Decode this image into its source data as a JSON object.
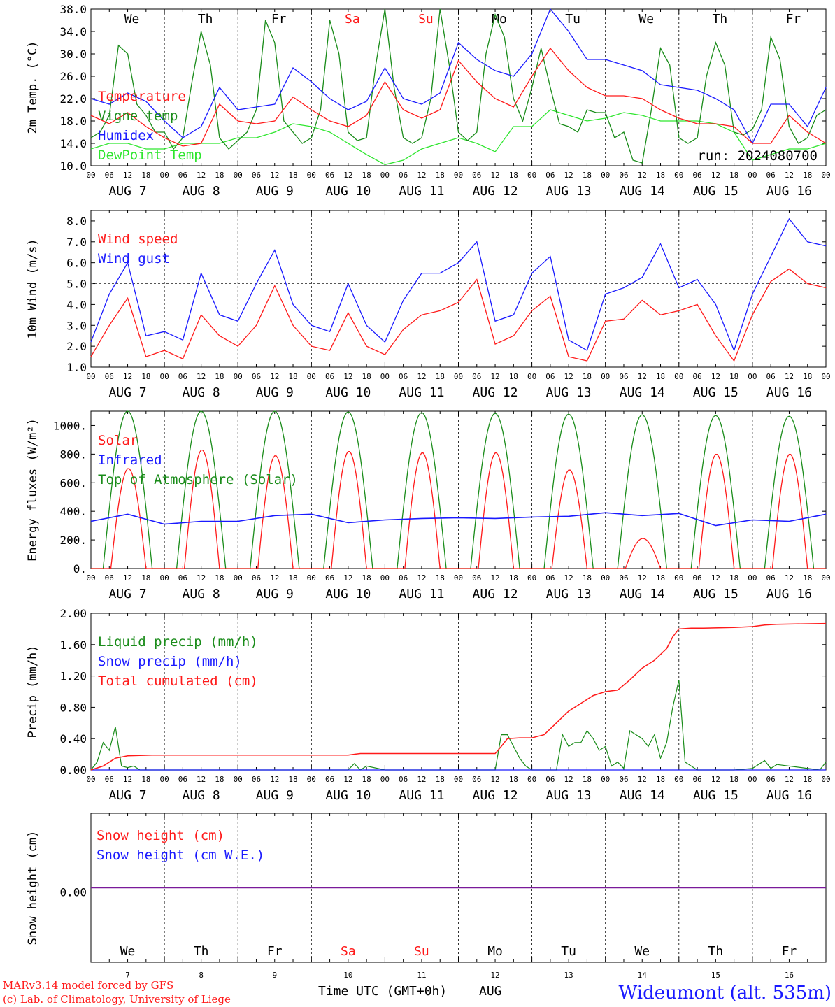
{
  "colors": {
    "red": "#ff1a1a",
    "green": "#1a8c1a",
    "lightgreen": "#2ee62e",
    "blue": "#1a1aff",
    "purple": "#7a1a9a",
    "weekend": "#ff1a1a"
  },
  "x_axis": {
    "hour_ticks": [
      "00",
      "06",
      "12",
      "18"
    ],
    "final_tick": "00",
    "day_labels": [
      "AUG  7",
      "AUG  8",
      "AUG  9",
      "AUG 10",
      "AUG 11",
      "AUG 12",
      "AUG 13",
      "AUG 14",
      "AUG 15",
      "AUG 16"
    ],
    "weekdays": [
      "We",
      "Th",
      "Fr",
      "Sa",
      "Su",
      "Mo",
      "Tu",
      "We",
      "Th",
      "Fr"
    ],
    "weekend_flags": [
      false,
      false,
      false,
      true,
      true,
      false,
      false,
      false,
      false,
      false
    ],
    "bottom_day_numbers": [
      "7",
      "8",
      "9",
      "10",
      "11",
      "12",
      "13",
      "14",
      "15",
      "16"
    ],
    "bottom_label": "Time UTC (GMT+0h)",
    "month_label": "AUG"
  },
  "run_label": "run: 2024080700",
  "footer": {
    "line1": "MARv3.14 model forced by GFS",
    "line2": "(c) Lab. of Climatology, University of Liege",
    "station": "Wideumont (alt. 535m)"
  },
  "chart_data": [
    {
      "type": "line",
      "ylabel": "2m Temp. (°C)",
      "ylim": [
        10,
        38
      ],
      "yticks": [
        "10.0",
        "14.0",
        "18.0",
        "22.0",
        "26.0",
        "30.0",
        "34.0",
        "38.0"
      ],
      "x_hours_range": [
        0,
        240
      ],
      "series": [
        {
          "name": "Temperature",
          "color": "red",
          "x": [
            0,
            6,
            12,
            18,
            24,
            30,
            36,
            42,
            48,
            54,
            60,
            66,
            72,
            78,
            84,
            90,
            96,
            102,
            108,
            114,
            120,
            126,
            132,
            138,
            144,
            150,
            156,
            162,
            168,
            174,
            180,
            186,
            192,
            198,
            204,
            210,
            216,
            222,
            228,
            234,
            240
          ],
          "y": [
            19,
            17.5,
            19.5,
            17,
            15,
            13.5,
            14,
            21,
            18,
            17.5,
            18,
            22.3,
            20,
            18,
            17,
            19,
            25,
            20,
            18.5,
            20,
            28.8,
            25,
            22,
            20.5,
            26,
            31,
            27,
            24,
            22.5,
            22.5,
            22,
            20,
            18.5,
            17.5,
            17.5,
            17,
            14,
            14,
            19,
            16,
            14
          ]
        },
        {
          "name": "Vigne temp",
          "color": "green",
          "x": [
            0,
            3,
            6,
            9,
            12,
            15,
            18,
            21,
            24,
            27,
            30,
            33,
            36,
            39,
            42,
            45,
            48,
            51,
            54,
            57,
            60,
            63,
            66,
            69,
            72,
            75,
            78,
            81,
            84,
            87,
            90,
            93,
            96,
            99,
            102,
            105,
            108,
            111,
            114,
            117,
            120,
            123,
            126,
            129,
            132,
            135,
            138,
            141,
            144,
            147,
            150,
            153,
            156,
            159,
            162,
            165,
            168,
            171,
            174,
            177,
            180,
            183,
            186,
            189,
            192,
            195,
            198,
            201,
            204,
            207,
            210,
            213,
            216,
            219,
            222,
            225,
            228,
            231,
            234,
            237,
            240
          ],
          "y": [
            15,
            16,
            19,
            31.5,
            30,
            21,
            19,
            16,
            16,
            13,
            15,
            25,
            34,
            28,
            15,
            13,
            14.5,
            16,
            20,
            36,
            32,
            18,
            16,
            14,
            15,
            20,
            36,
            30,
            16,
            14.5,
            15,
            28,
            38,
            24,
            15,
            14,
            15,
            22,
            38,
            28,
            16,
            14.5,
            16,
            30,
            37,
            33,
            22,
            18,
            24,
            31,
            24,
            17.5,
            17,
            16,
            20,
            19.5,
            19.5,
            15,
            16,
            11,
            10.5,
            20,
            31,
            28,
            15,
            14,
            15,
            26,
            32,
            28,
            16,
            15.5,
            16.5,
            20,
            33,
            29,
            17,
            14,
            15,
            19,
            20
          ]
        },
        {
          "name": "Humidex",
          "color": "blue",
          "x": [
            0,
            6,
            12,
            18,
            24,
            30,
            36,
            42,
            48,
            54,
            60,
            66,
            72,
            78,
            84,
            90,
            96,
            102,
            108,
            114,
            120,
            126,
            132,
            138,
            144,
            150,
            156,
            162,
            168,
            174,
            180,
            186,
            192,
            198,
            204,
            210,
            216,
            222,
            228,
            234,
            240
          ],
          "y": [
            22,
            21,
            23,
            21.5,
            18,
            15,
            17,
            24,
            20,
            20.5,
            21,
            27.5,
            25,
            22,
            20,
            21.5,
            27.5,
            22,
            21,
            23,
            32,
            29,
            27,
            26,
            30,
            38,
            34,
            29,
            29,
            28,
            27,
            24.5,
            24,
            23.5,
            22,
            20,
            14,
            21,
            21,
            17,
            24
          ]
        },
        {
          "name": "DewPoint Temp",
          "color": "lightgreen",
          "x": [
            0,
            6,
            12,
            18,
            24,
            30,
            36,
            42,
            48,
            54,
            60,
            66,
            72,
            78,
            84,
            90,
            96,
            102,
            108,
            114,
            120,
            126,
            132,
            138,
            144,
            150,
            156,
            162,
            168,
            174,
            180,
            186,
            192,
            198,
            204,
            210,
            216,
            222,
            228,
            234,
            240
          ],
          "y": [
            13,
            14,
            14,
            13,
            13,
            14,
            14,
            14,
            15,
            15,
            16,
            17.5,
            17,
            16,
            14,
            12,
            10.2,
            11,
            13,
            14,
            15,
            14,
            12.5,
            17,
            17,
            20,
            19,
            18,
            18.5,
            19.5,
            19,
            18,
            18,
            18,
            17.5,
            16,
            11,
            12,
            13,
            13,
            14
          ]
        }
      ]
    },
    {
      "type": "line",
      "ylabel": "10m Wind (m/s)",
      "ylim": [
        1,
        8.5
      ],
      "yticks": [
        "1.0",
        "2.0",
        "3.0",
        "4.0",
        "5.0",
        "6.0",
        "7.0",
        "8.0"
      ],
      "reference_line": 5,
      "x_hours_range": [
        0,
        240
      ],
      "series": [
        {
          "name": "Wind speed",
          "color": "red",
          "x": [
            0,
            6,
            12,
            18,
            24,
            30,
            36,
            42,
            48,
            54,
            60,
            66,
            72,
            78,
            84,
            90,
            96,
            102,
            108,
            114,
            120,
            126,
            132,
            138,
            144,
            150,
            156,
            162,
            168,
            174,
            180,
            186,
            192,
            198,
            204,
            210,
            216,
            222,
            228,
            234,
            240
          ],
          "y": [
            1.5,
            3.0,
            4.3,
            1.5,
            1.8,
            1.4,
            3.5,
            2.5,
            2.0,
            3.0,
            4.9,
            3.0,
            2.0,
            1.8,
            3.6,
            2.0,
            1.6,
            2.8,
            3.5,
            3.7,
            4.1,
            5.2,
            2.1,
            2.5,
            3.7,
            4.4,
            1.5,
            1.3,
            3.2,
            3.3,
            4.2,
            3.5,
            3.7,
            4.0,
            2.5,
            1.3,
            3.5,
            5.1,
            5.7,
            5.0,
            4.8
          ]
        },
        {
          "name": "Wind gust",
          "color": "blue",
          "x": [
            0,
            6,
            12,
            18,
            24,
            30,
            36,
            42,
            48,
            54,
            60,
            66,
            72,
            78,
            84,
            90,
            96,
            102,
            108,
            114,
            120,
            126,
            132,
            138,
            144,
            150,
            156,
            162,
            168,
            174,
            180,
            186,
            192,
            198,
            204,
            210,
            216,
            222,
            228,
            234,
            240
          ],
          "y": [
            2.2,
            4.5,
            6.0,
            2.5,
            2.7,
            2.3,
            5.5,
            3.5,
            3.2,
            5.0,
            6.6,
            4.0,
            3.0,
            2.7,
            5.0,
            3.0,
            2.2,
            4.2,
            5.5,
            5.5,
            6.0,
            7.0,
            3.2,
            3.5,
            5.5,
            6.3,
            2.3,
            1.8,
            4.5,
            4.8,
            5.3,
            6.9,
            4.8,
            5.2,
            4.0,
            1.8,
            4.5,
            6.3,
            8.1,
            7.0,
            6.8
          ]
        }
      ]
    },
    {
      "type": "line",
      "ylabel": "Energy fluxes (W/m²)",
      "ylim": [
        0,
        1100
      ],
      "yticks": [
        "0.",
        "200.",
        "400.",
        "600.",
        "800.",
        "1000."
      ],
      "x_hours_range": [
        0,
        240
      ],
      "series": [
        {
          "name": "Solar",
          "color": "red",
          "peaks": [
            700,
            830,
            790,
            820,
            810,
            810,
            690,
            210,
            800,
            800
          ]
        },
        {
          "name": "Infrared",
          "color": "blue",
          "x": [
            0,
            12,
            24,
            36,
            48,
            60,
            72,
            84,
            96,
            108,
            120,
            132,
            144,
            156,
            168,
            180,
            192,
            204,
            216,
            228,
            240
          ],
          "y": [
            330,
            380,
            310,
            330,
            330,
            370,
            380,
            320,
            340,
            350,
            355,
            350,
            360,
            365,
            390,
            370,
            385,
            300,
            340,
            330,
            380
          ]
        },
        {
          "name": "Top of Atmosphere (Solar)",
          "color": "green",
          "peaks": [
            1100,
            1100,
            1100,
            1095,
            1090,
            1085,
            1080,
            1075,
            1070,
            1065
          ]
        }
      ]
    },
    {
      "type": "line",
      "ylabel": "Precip (mm/h)",
      "ylim": [
        0,
        2
      ],
      "yticks": [
        "0.00",
        "0.40",
        "0.80",
        "1.20",
        "1.60",
        "2.00"
      ],
      "x_hours_range": [
        0,
        240
      ],
      "series": [
        {
          "name": "Liquid precip (mm/h)",
          "color": "green",
          "x": [
            0,
            2,
            4,
            6,
            8,
            10,
            12,
            14,
            16,
            84,
            86,
            88,
            90,
            96,
            132,
            134,
            136,
            138,
            140,
            142,
            144,
            148,
            152,
            154,
            156,
            158,
            160,
            162,
            164,
            166,
            168,
            170,
            172,
            174,
            176,
            178,
            180,
            182,
            184,
            186,
            188,
            190,
            192,
            194,
            196,
            198,
            210,
            216,
            220,
            222,
            224,
            238,
            240
          ],
          "y": [
            0,
            0.1,
            0.35,
            0.25,
            0.55,
            0.05,
            0.03,
            0.05,
            0,
            0,
            0.08,
            0,
            0.05,
            0,
            0,
            0.45,
            0.45,
            0.3,
            0.15,
            0.05,
            0,
            0,
            0,
            0.45,
            0.3,
            0.35,
            0.35,
            0.5,
            0.4,
            0.25,
            0.3,
            0.05,
            0.1,
            0.02,
            0.5,
            0.45,
            0.4,
            0.3,
            0.45,
            0.15,
            0.35,
            0.8,
            1.15,
            0.1,
            0.05,
            0,
            0,
            0.02,
            0.12,
            0.02,
            0.07,
            0,
            0.1
          ]
        },
        {
          "name": "Snow precip (mm/h)",
          "color": "blue",
          "x": [
            0,
            240
          ],
          "y": [
            0,
            0
          ]
        },
        {
          "name": "Total cumulated (cm)",
          "color": "red",
          "x": [
            0,
            4,
            8,
            12,
            20,
            40,
            60,
            80,
            84,
            88,
            120,
            126,
            132,
            134,
            136,
            140,
            144,
            148,
            152,
            156,
            160,
            164,
            168,
            172,
            176,
            180,
            184,
            188,
            190,
            192,
            196,
            200,
            210,
            216,
            220,
            224,
            240
          ],
          "y": [
            0,
            0.05,
            0.15,
            0.18,
            0.19,
            0.19,
            0.19,
            0.19,
            0.19,
            0.21,
            0.21,
            0.21,
            0.21,
            0.3,
            0.4,
            0.41,
            0.41,
            0.45,
            0.6,
            0.75,
            0.85,
            0.95,
            1.0,
            1.02,
            1.15,
            1.3,
            1.4,
            1.55,
            1.7,
            1.8,
            1.81,
            1.81,
            1.82,
            1.83,
            1.85,
            1.86,
            1.87
          ]
        }
      ]
    },
    {
      "type": "line",
      "ylabel": "Snow height (cm)",
      "yticks": [
        "0.00"
      ],
      "x_hours_range": [
        0,
        240
      ],
      "series": [
        {
          "name": "Snow height (cm)",
          "color": "red",
          "x": [
            0,
            240
          ],
          "y": [
            0,
            0
          ]
        },
        {
          "name": "Snow height (cm W.E.)",
          "color": "blue",
          "x": [
            0,
            240
          ],
          "y": [
            0,
            0
          ]
        }
      ]
    }
  ]
}
